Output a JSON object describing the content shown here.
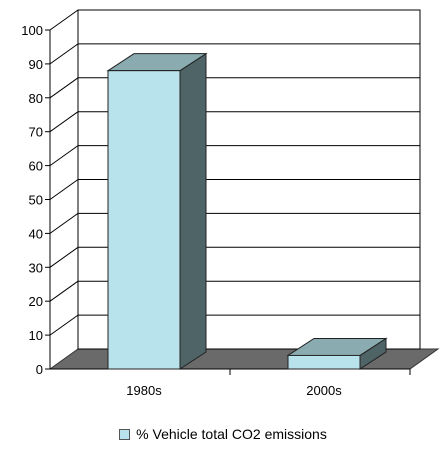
{
  "chart_data": {
    "type": "bar",
    "categories": [
      "1980s",
      "2000s"
    ],
    "series": [
      {
        "name": "% Vehicle total CO2 emissions",
        "values": [
          88,
          4
        ]
      }
    ],
    "ylim": [
      0,
      100
    ],
    "ytick_step": 10,
    "grid": true,
    "legend_position": "bottom",
    "colors": {
      "bar_front": "#b9e3ec",
      "bar_top": "#8aabaf",
      "bar_side": "#4f6466",
      "floor": "#6a6a6a",
      "grid": "#000000"
    }
  }
}
